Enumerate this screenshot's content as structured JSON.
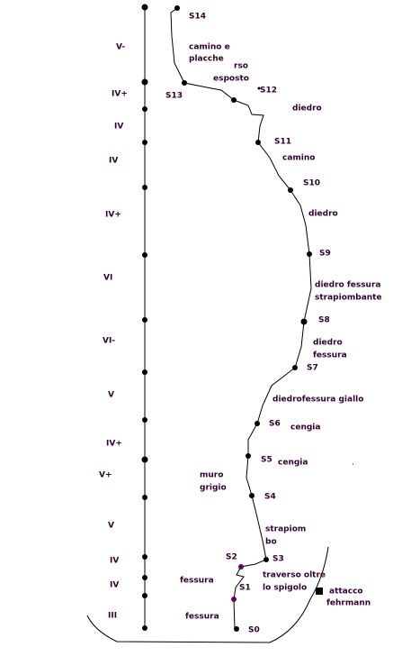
{
  "grades": [
    "V-",
    "IV+",
    "IV",
    "IV",
    "IV+",
    "VI",
    "VI-",
    "V",
    "IV+",
    "V+",
    "V",
    "IV",
    "IV",
    "III"
  ],
  "stations": [
    "S14",
    "S13",
    "S12",
    "S11",
    "S10",
    "S9",
    "S8",
    "S7",
    "S6",
    "S5",
    "S4",
    "S3",
    "S2",
    "S1",
    "S0"
  ],
  "notes": [
    "camino e",
    "placche",
    "rso",
    "esposto",
    "diedro",
    "camino",
    "diedro",
    "diedro fessura",
    "strapiombante",
    "diedro",
    "fessura",
    "diedrofessura giallo",
    "cengia",
    "cengia",
    "muro",
    "grigio",
    "strapiom",
    "bo",
    "traverso oltre",
    "lo spigolo",
    "fessura",
    "fessura",
    "attacco",
    "fehrmann"
  ]
}
